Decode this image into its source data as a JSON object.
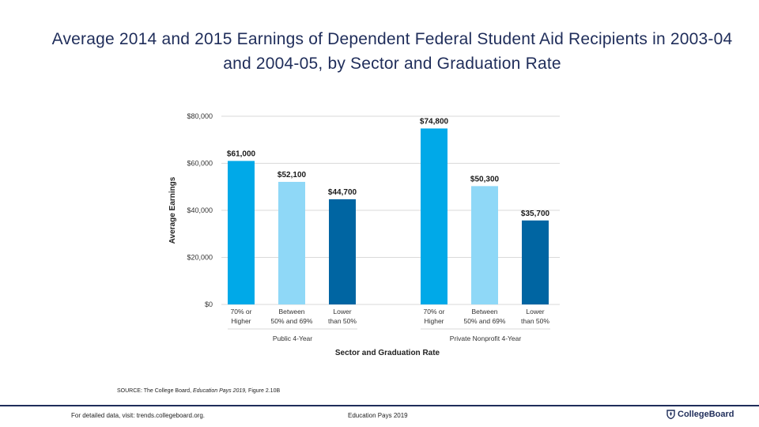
{
  "title": "Average 2014 and 2015 Earnings of Dependent Federal Student Aid Recipients in 2003-04 and 2004-05, by Sector and Graduation Rate",
  "chart_data": {
    "type": "bar",
    "title": "Average 2014 and 2015 Earnings of Dependent Federal Student Aid Recipients in 2003-04 and 2004-05, by Sector and Graduation Rate",
    "ylabel": "Average Earnings",
    "xlabel": "Sector and Graduation Rate",
    "ylim": [
      0,
      80000
    ],
    "yticks": [
      0,
      20000,
      40000,
      60000,
      80000
    ],
    "ytick_labels": [
      "$0",
      "$20,000",
      "$40,000",
      "$60,000",
      "$80,000"
    ],
    "grid": true,
    "groups": [
      {
        "name": "Public 4-Year",
        "bars": [
          {
            "label": [
              "70% or",
              "Higher"
            ],
            "value": 61000,
            "value_label": "$61,000",
            "color": "#00a9e8"
          },
          {
            "label": [
              "Between",
              "50% and 69%"
            ],
            "value": 52100,
            "value_label": "$52,100",
            "color": "#8fd8f7"
          },
          {
            "label": [
              "Lower",
              "than 50%"
            ],
            "value": 44700,
            "value_label": "$44,700",
            "color": "#0065a2"
          }
        ]
      },
      {
        "name": "Private Nonprofit 4-Year",
        "bars": [
          {
            "label": [
              "70% or",
              "Higher"
            ],
            "value": 74800,
            "value_label": "$74,800",
            "color": "#00a9e8"
          },
          {
            "label": [
              "Between",
              "50% and 69%"
            ],
            "value": 50300,
            "value_label": "$50,300",
            "color": "#8fd8f7"
          },
          {
            "label": [
              "Lower",
              "than 50%"
            ],
            "value": 35700,
            "value_label": "$35,700",
            "color": "#0065a2"
          }
        ]
      }
    ]
  },
  "source": {
    "prefix": "SOURCE: The College Board,",
    "publication": "Education Pays 2019,",
    "suffix": "Figure 2.10B"
  },
  "footer": {
    "left": "For detailed data, visit: trends.collegeboard.org.",
    "center": "Education Pays 2019",
    "logo_text": "CollegeBoard",
    "logo_icon": "acorn-shield-icon"
  },
  "colors": {
    "title": "#1f2d5a",
    "footer_rule": "#1f2d5a",
    "grid": "#d9d9d9"
  }
}
